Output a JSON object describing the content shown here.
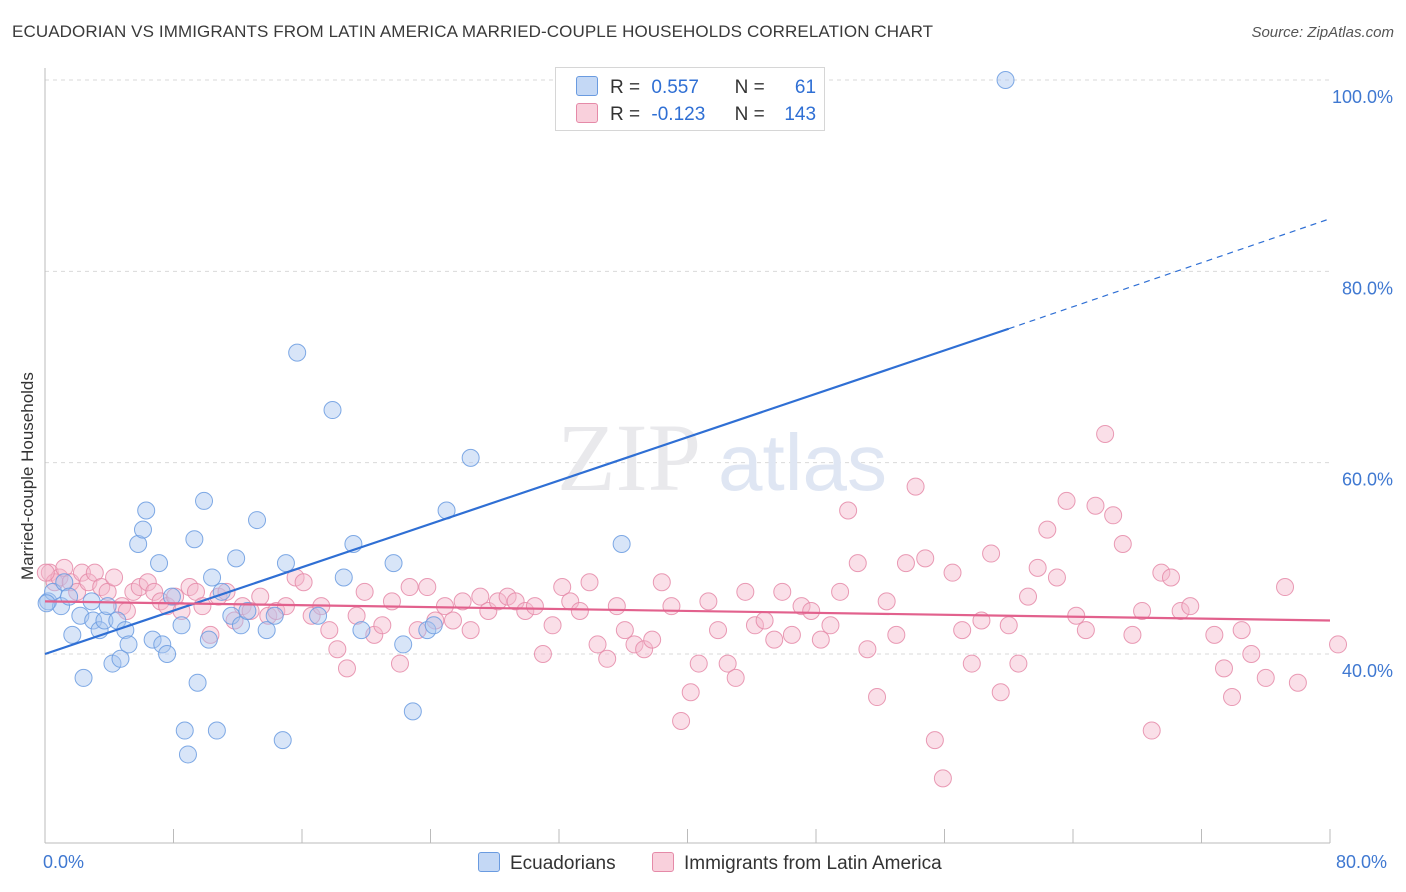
{
  "header": {
    "title": "ECUADORIAN VS IMMIGRANTS FROM LATIN AMERICA MARRIED-COUPLE HOUSEHOLDS CORRELATION CHART",
    "source": "Source: ZipAtlas.com"
  },
  "watermark": {
    "zip": "ZIP",
    "atlas": "atlas"
  },
  "legend": {
    "rows": [
      {
        "r_label": "R =",
        "r_value": "0.557",
        "n_label": "N =",
        "n_value": "61",
        "color": "#a9c6f0",
        "border": "#6a9be0"
      },
      {
        "r_label": "R =",
        "r_value": "-0.123",
        "n_label": "N =",
        "n_value": "143",
        "color": "#f5b9cc",
        "border": "#e58aa8"
      }
    ]
  },
  "bottom_legend": {
    "items": [
      {
        "label": "Ecuadorians",
        "color": "#a9c6f0",
        "border": "#6a9be0"
      },
      {
        "label": "Immigrants from Latin America",
        "color": "#f5b9cc",
        "border": "#e58aa8"
      }
    ]
  },
  "chart_data": {
    "type": "scatter",
    "title": "ECUADORIAN VS IMMIGRANTS FROM LATIN AMERICA MARRIED-COUPLE HOUSEHOLDS CORRELATION CHART",
    "xlabel": "",
    "ylabel": "Married-couple Households",
    "xlim": [
      0,
      80
    ],
    "ylim": [
      20,
      101
    ],
    "x_tick_labels": [
      "0.0%",
      "80.0%"
    ],
    "y_ticks": [
      40,
      60,
      80,
      100
    ],
    "y_tick_labels": [
      "40.0%",
      "60.0%",
      "80.0%",
      "100.0%"
    ],
    "grid": "horizontal dashed",
    "legend_position": "top-center",
    "colors": {
      "blue": "#a9c6f0",
      "blue_edge": "#6a9be0",
      "blue_line": "#2f6fd4",
      "pink": "#f5b9cc",
      "pink_edge": "#e58aa8",
      "pink_line": "#e2618d"
    },
    "series": [
      {
        "name": "Ecuadorians",
        "trend": {
          "x": [
            0,
            60
          ],
          "y": [
            40.0,
            74.0
          ],
          "dashed_to": [
            80,
            85.5
          ]
        },
        "points": [
          [
            0.2,
            45.5
          ],
          [
            0.5,
            46.5
          ],
          [
            1.0,
            45.0
          ],
          [
            1.2,
            47.5
          ],
          [
            1.5,
            46.0
          ],
          [
            1.7,
            42.0
          ],
          [
            2.2,
            44.0
          ],
          [
            2.4,
            37.5
          ],
          [
            2.9,
            45.5
          ],
          [
            3.0,
            43.5
          ],
          [
            3.4,
            42.5
          ],
          [
            3.7,
            43.5
          ],
          [
            3.9,
            45.0
          ],
          [
            4.2,
            39.0
          ],
          [
            4.5,
            43.5
          ],
          [
            4.7,
            39.5
          ],
          [
            5.0,
            42.5
          ],
          [
            5.2,
            41.0
          ],
          [
            5.8,
            51.5
          ],
          [
            6.1,
            53.0
          ],
          [
            6.3,
            55.0
          ],
          [
            6.7,
            41.5
          ],
          [
            7.1,
            49.5
          ],
          [
            7.3,
            41.0
          ],
          [
            7.6,
            40.0
          ],
          [
            7.9,
            46.0
          ],
          [
            8.5,
            43.0
          ],
          [
            8.7,
            32.0
          ],
          [
            8.9,
            29.5
          ],
          [
            9.3,
            52.0
          ],
          [
            9.5,
            37.0
          ],
          [
            9.9,
            56.0
          ],
          [
            10.2,
            41.5
          ],
          [
            10.4,
            48.0
          ],
          [
            10.7,
            32.0
          ],
          [
            11.0,
            46.5
          ],
          [
            11.6,
            44.0
          ],
          [
            11.9,
            50.0
          ],
          [
            12.2,
            43.0
          ],
          [
            12.6,
            44.5
          ],
          [
            13.2,
            54.0
          ],
          [
            13.8,
            42.5
          ],
          [
            14.3,
            44.0
          ],
          [
            14.8,
            31.0
          ],
          [
            15.0,
            49.5
          ],
          [
            15.7,
            71.5
          ],
          [
            17.0,
            44.0
          ],
          [
            17.9,
            65.5
          ],
          [
            18.6,
            48.0
          ],
          [
            19.2,
            51.5
          ],
          [
            19.7,
            42.5
          ],
          [
            21.7,
            49.5
          ],
          [
            22.3,
            41.0
          ],
          [
            22.9,
            34.0
          ],
          [
            23.8,
            42.5
          ],
          [
            24.2,
            43.0
          ],
          [
            25.0,
            55.0
          ],
          [
            26.5,
            60.5
          ],
          [
            35.9,
            51.5
          ],
          [
            59.8,
            100.0
          ],
          [
            0.1,
            45.3
          ]
        ]
      },
      {
        "name": "Immigrants from Latin America",
        "trend": {
          "x": [
            0,
            80
          ],
          "y": [
            45.5,
            43.5
          ]
        },
        "points": [
          [
            0.3,
            48.5
          ],
          [
            0.6,
            47.5
          ],
          [
            0.9,
            48.0
          ],
          [
            1.2,
            49.0
          ],
          [
            1.6,
            47.5
          ],
          [
            2.0,
            46.5
          ],
          [
            2.3,
            48.5
          ],
          [
            2.7,
            47.5
          ],
          [
            3.1,
            48.5
          ],
          [
            3.5,
            47.0
          ],
          [
            3.9,
            46.5
          ],
          [
            4.3,
            48.0
          ],
          [
            4.8,
            45.0
          ],
          [
            5.1,
            44.5
          ],
          [
            5.5,
            46.5
          ],
          [
            5.9,
            47.0
          ],
          [
            6.4,
            47.5
          ],
          [
            6.8,
            46.5
          ],
          [
            7.2,
            45.5
          ],
          [
            7.6,
            45.0
          ],
          [
            8.1,
            46.0
          ],
          [
            8.5,
            44.5
          ],
          [
            9.0,
            47.0
          ],
          [
            9.4,
            46.5
          ],
          [
            9.8,
            45.0
          ],
          [
            10.3,
            42.0
          ],
          [
            10.8,
            46.0
          ],
          [
            11.3,
            46.5
          ],
          [
            11.8,
            43.5
          ],
          [
            12.3,
            45.0
          ],
          [
            12.8,
            44.5
          ],
          [
            13.4,
            46.0
          ],
          [
            13.9,
            44.0
          ],
          [
            14.4,
            44.5
          ],
          [
            15.0,
            45.0
          ],
          [
            15.6,
            48.0
          ],
          [
            16.1,
            47.5
          ],
          [
            16.6,
            44.0
          ],
          [
            17.2,
            45.0
          ],
          [
            17.7,
            42.5
          ],
          [
            18.2,
            40.5
          ],
          [
            18.8,
            38.5
          ],
          [
            19.4,
            44.0
          ],
          [
            19.9,
            46.5
          ],
          [
            20.5,
            42.0
          ],
          [
            21.0,
            43.0
          ],
          [
            21.6,
            45.5
          ],
          [
            22.1,
            39.0
          ],
          [
            22.7,
            47.0
          ],
          [
            23.2,
            42.5
          ],
          [
            23.8,
            47.0
          ],
          [
            24.3,
            43.5
          ],
          [
            24.9,
            45.0
          ],
          [
            25.4,
            43.5
          ],
          [
            26.0,
            45.5
          ],
          [
            26.5,
            42.5
          ],
          [
            27.1,
            46.0
          ],
          [
            27.6,
            44.5
          ],
          [
            28.2,
            45.5
          ],
          [
            28.8,
            46.0
          ],
          [
            29.3,
            45.5
          ],
          [
            29.9,
            44.5
          ],
          [
            30.5,
            45.0
          ],
          [
            31.0,
            40.0
          ],
          [
            31.6,
            43.0
          ],
          [
            32.2,
            47.0
          ],
          [
            32.7,
            45.5
          ],
          [
            33.3,
            44.5
          ],
          [
            33.9,
            47.5
          ],
          [
            34.4,
            41.0
          ],
          [
            35.0,
            39.5
          ],
          [
            35.6,
            45.0
          ],
          [
            36.1,
            42.5
          ],
          [
            36.7,
            41.0
          ],
          [
            37.3,
            40.5
          ],
          [
            37.8,
            41.5
          ],
          [
            38.4,
            47.5
          ],
          [
            39.0,
            45.0
          ],
          [
            39.6,
            33.0
          ],
          [
            40.2,
            36.0
          ],
          [
            40.7,
            39.0
          ],
          [
            41.3,
            45.5
          ],
          [
            41.9,
            42.5
          ],
          [
            42.5,
            39.0
          ],
          [
            43.0,
            37.5
          ],
          [
            43.6,
            46.5
          ],
          [
            44.2,
            43.0
          ],
          [
            44.8,
            43.5
          ],
          [
            45.4,
            41.5
          ],
          [
            45.9,
            46.5
          ],
          [
            46.5,
            42.0
          ],
          [
            47.1,
            45.0
          ],
          [
            47.7,
            44.5
          ],
          [
            48.3,
            41.5
          ],
          [
            48.9,
            43.0
          ],
          [
            49.5,
            46.5
          ],
          [
            50.0,
            55.0
          ],
          [
            50.6,
            49.5
          ],
          [
            51.2,
            40.5
          ],
          [
            51.8,
            35.5
          ],
          [
            52.4,
            45.5
          ],
          [
            53.0,
            42.0
          ],
          [
            53.6,
            49.5
          ],
          [
            54.2,
            57.5
          ],
          [
            54.8,
            50.0
          ],
          [
            55.4,
            31.0
          ],
          [
            55.9,
            27.0
          ],
          [
            56.5,
            48.5
          ],
          [
            57.1,
            42.5
          ],
          [
            57.7,
            39.0
          ],
          [
            58.3,
            43.5
          ],
          [
            58.9,
            50.5
          ],
          [
            59.5,
            36.0
          ],
          [
            60.0,
            43.0
          ],
          [
            60.6,
            39.0
          ],
          [
            61.2,
            46.0
          ],
          [
            61.8,
            49.0
          ],
          [
            62.4,
            53.0
          ],
          [
            63.0,
            48.0
          ],
          [
            63.6,
            56.0
          ],
          [
            64.2,
            44.0
          ],
          [
            64.8,
            42.5
          ],
          [
            65.4,
            55.5
          ],
          [
            66.0,
            63.0
          ],
          [
            66.5,
            54.5
          ],
          [
            67.1,
            51.5
          ],
          [
            67.7,
            42.0
          ],
          [
            68.3,
            44.5
          ],
          [
            68.9,
            32.0
          ],
          [
            69.5,
            48.5
          ],
          [
            70.1,
            48.0
          ],
          [
            70.7,
            44.5
          ],
          [
            71.3,
            45.0
          ],
          [
            72.8,
            42.0
          ],
          [
            73.4,
            38.5
          ],
          [
            73.9,
            35.5
          ],
          [
            74.5,
            42.5
          ],
          [
            75.1,
            40.0
          ],
          [
            76.0,
            37.5
          ],
          [
            77.2,
            47.0
          ],
          [
            78.0,
            37.0
          ],
          [
            80.5,
            41.0
          ],
          [
            0.05,
            48.5
          ]
        ]
      }
    ]
  }
}
